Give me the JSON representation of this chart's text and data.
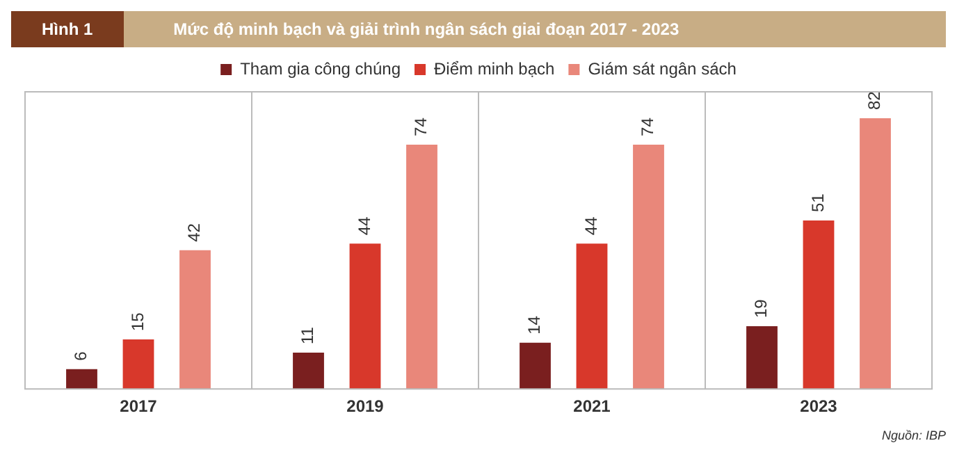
{
  "chart_data": {
    "type": "bar",
    "title": "Mức độ minh bạch và giải trình ngân sách giai đoạn 2017 - 2023",
    "categories": [
      "2017",
      "2019",
      "2021",
      "2023"
    ],
    "series": [
      {
        "name": "Tham gia công chúng",
        "color": "#7a1f1f",
        "values": [
          6,
          11,
          14,
          19
        ]
      },
      {
        "name": "Điểm minh bạch",
        "color": "#d8382b",
        "values": [
          15,
          44,
          44,
          51
        ]
      },
      {
        "name": "Giám sát ngân sách",
        "color": "#e9877a",
        "values": [
          42,
          74,
          74,
          82
        ]
      }
    ],
    "data_labels": true,
    "grid": "x",
    "legend": "top",
    "tick_labels": "x",
    "annotations": [
      "Hình 1",
      "Nguồn: IBP"
    ]
  }
}
